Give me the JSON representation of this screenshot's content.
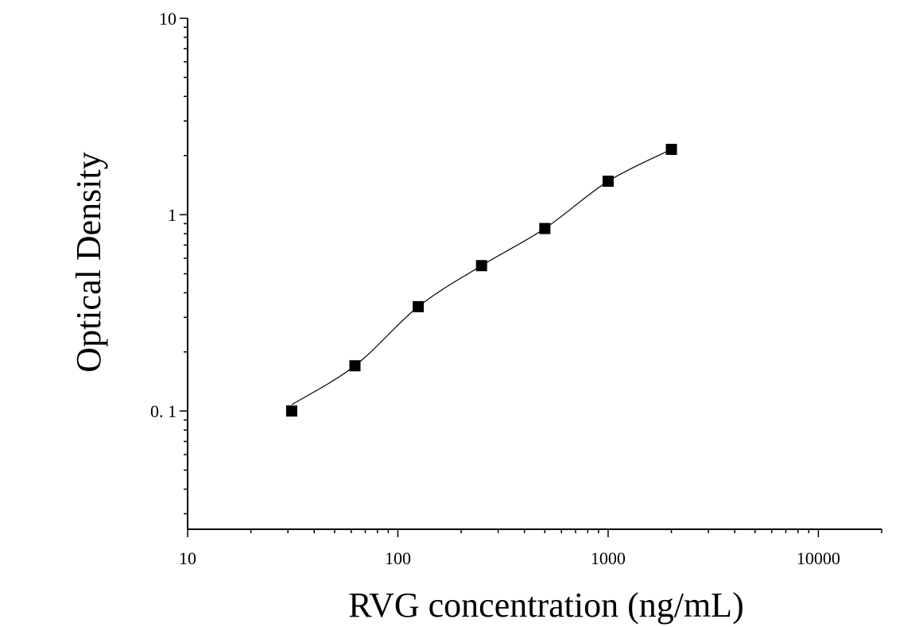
{
  "chart_data": {
    "type": "scatter",
    "title": "",
    "xlabel": "RVG concentration (ng/mL)",
    "ylabel": "Optical Density",
    "xscale": "log",
    "yscale": "log",
    "xlim": [
      10,
      20000
    ],
    "ylim": [
      0.025,
      10
    ],
    "x_ticks": [
      {
        "value": 10,
        "label": "10"
      },
      {
        "value": 100,
        "label": "100"
      },
      {
        "value": 1000,
        "label": "1000"
      },
      {
        "value": 10000,
        "label": "10000"
      }
    ],
    "y_ticks": [
      {
        "value": 0.1,
        "label": "0. 1"
      },
      {
        "value": 1,
        "label": "1"
      },
      {
        "value": 10,
        "label": "10"
      }
    ],
    "grid": false,
    "legend": "none",
    "series": [
      {
        "marker": "square",
        "color": "#000000",
        "fit_line": true,
        "x": [
          31.25,
          62.5,
          125,
          250,
          500,
          1000,
          2000
        ],
        "y": [
          0.1,
          0.17,
          0.34,
          0.55,
          0.85,
          1.48,
          2.15
        ]
      }
    ]
  }
}
